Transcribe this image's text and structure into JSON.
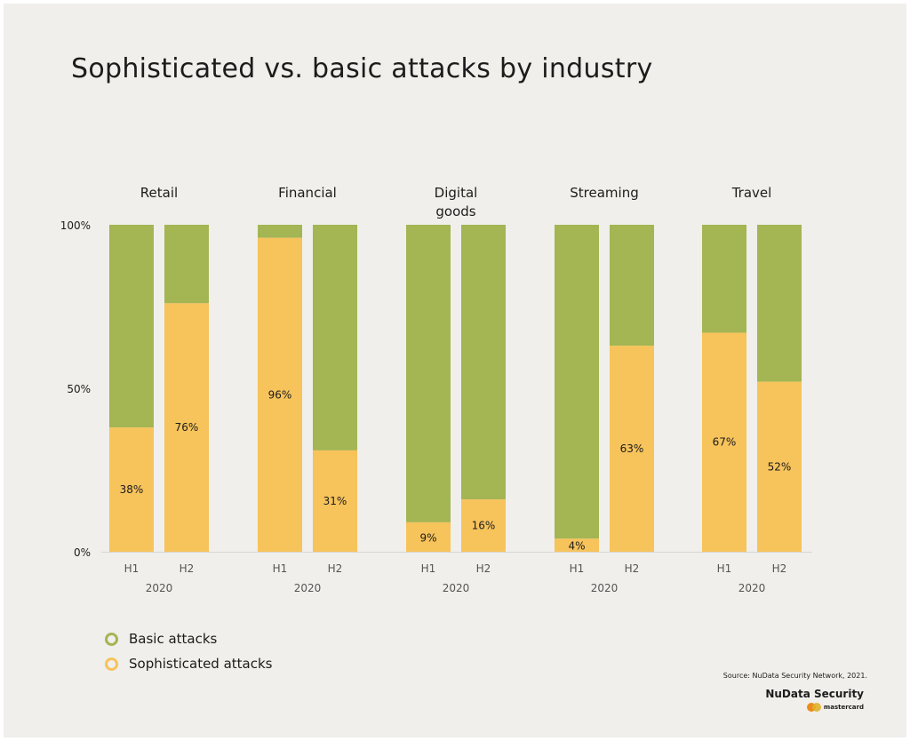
{
  "colors": {
    "basic": "#a4b553",
    "sophisticated": "#f7c35b",
    "text": "#1c1c1c",
    "axis": "#d6d6d2"
  },
  "chart_data": {
    "type": "bar",
    "stacked": true,
    "percent": true,
    "title": "Sophisticated vs. basic attacks by industry",
    "ylim": [
      0,
      100
    ],
    "yticks": [
      "100%",
      "50%",
      "0%"
    ],
    "year": "2020",
    "periods": [
      "H1",
      "H2"
    ],
    "groups": [
      {
        "name": "Retail",
        "sophisticated": [
          38,
          76
        ],
        "labels": [
          "38%",
          "76%"
        ]
      },
      {
        "name": "Financial",
        "sophisticated": [
          96,
          31
        ],
        "labels": [
          "96%",
          "31%"
        ]
      },
      {
        "name": "Digital goods",
        "name_lines": [
          "Digital",
          "goods"
        ],
        "sophisticated": [
          9,
          16
        ],
        "labels": [
          "9%",
          "16%"
        ]
      },
      {
        "name": "Streaming",
        "sophisticated": [
          4,
          63
        ],
        "labels": [
          "4%",
          "63%"
        ]
      },
      {
        "name": "Travel",
        "sophisticated": [
          67,
          52
        ],
        "labels": [
          "67%",
          "52%"
        ]
      }
    ],
    "series": [
      {
        "name": "Basic attacks",
        "color": "#a4b553"
      },
      {
        "name": "Sophisticated attacks",
        "color": "#f7c35b"
      }
    ],
    "legend": "bottom-left",
    "grid": false
  },
  "footer": {
    "source": "Source: NuData Security Network, 2021.",
    "brand": "NuData Security",
    "brand_sub": "mastercard"
  }
}
